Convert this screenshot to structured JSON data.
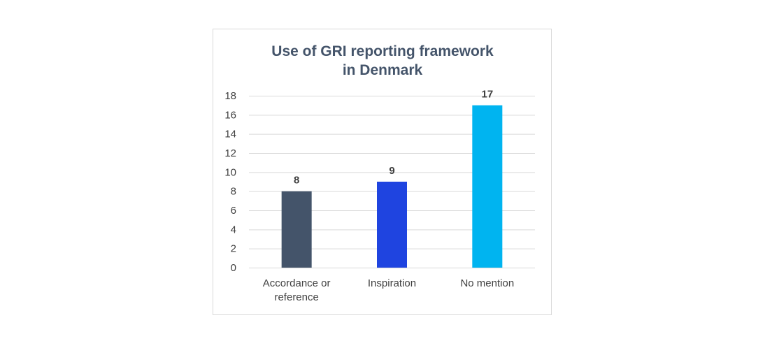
{
  "chart_data": {
    "type": "bar",
    "title_lines": [
      "Use of GRI reporting framework",
      "in Denmark"
    ],
    "categories": [
      [
        "Accordance or",
        "reference"
      ],
      [
        "Inspiration"
      ],
      [
        "No mention"
      ]
    ],
    "values": [
      8,
      9,
      17
    ],
    "data_labels": [
      "8",
      "9",
      "17"
    ],
    "colors": [
      "#44546a",
      "#1f44e0",
      "#00b4f0"
    ],
    "yticks": [
      "0",
      "2",
      "4",
      "6",
      "8",
      "10",
      "12",
      "14",
      "16",
      "18"
    ],
    "ylim": [
      0,
      18
    ],
    "grid": true,
    "xlabel": "",
    "ylabel": ""
  }
}
